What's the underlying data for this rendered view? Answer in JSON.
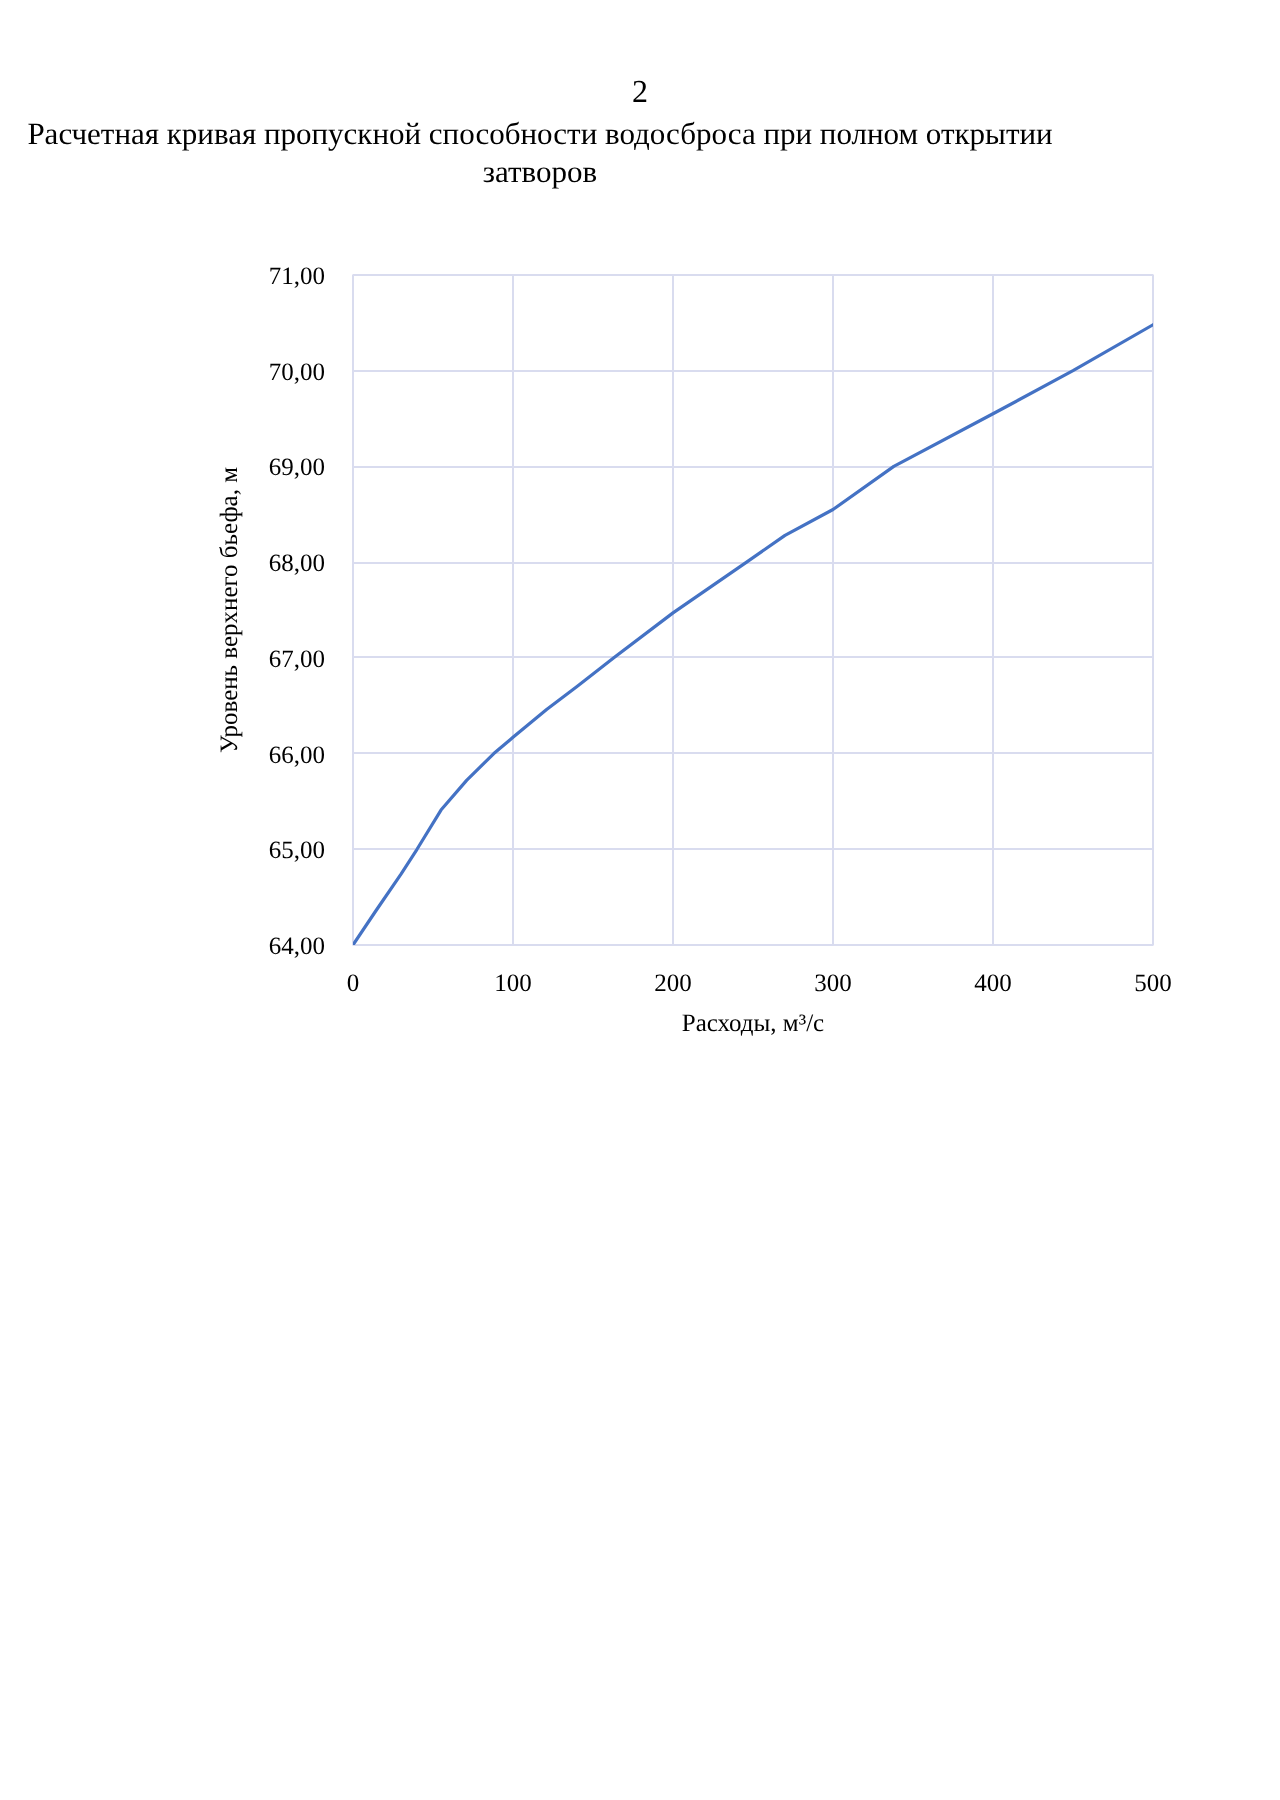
{
  "chart_data": {
    "type": "line",
    "title": "Расчетная кривая пропускной способности водосброса при полном открытии затворов",
    "xlabel": "Расходы, м³/с",
    "ylabel": "Уровень верхнего бьефа, м",
    "annotations": [
      "2"
    ],
    "x": [
      0,
      14,
      30,
      40,
      55,
      71,
      88,
      100,
      121,
      140,
      163,
      200,
      246,
      270,
      300,
      338,
      400,
      450,
      500
    ],
    "series": [
      {
        "color": "#4472c4",
        "values": [
          64.0,
          64.35,
          64.74,
          65.0,
          65.41,
          65.72,
          66.0,
          66.17,
          66.46,
          66.7,
          67.0,
          67.47,
          68.0,
          68.28,
          68.55,
          69.0,
          69.55,
          70.0,
          70.48
        ]
      }
    ],
    "xlim": [
      0,
      500
    ],
    "ylim": [
      64,
      71
    ],
    "xticks": [
      0,
      100,
      200,
      300,
      400,
      500
    ],
    "yticks": [
      {
        "value": 64,
        "label": "64,00"
      },
      {
        "value": 65,
        "label": "65,00"
      },
      {
        "value": 66,
        "label": "66,00"
      },
      {
        "value": 67,
        "label": "67,00"
      },
      {
        "value": 68,
        "label": "68,00"
      },
      {
        "value": 69,
        "label": "69,00"
      },
      {
        "value": 70,
        "label": "70,00"
      },
      {
        "value": 71,
        "label": "71,00"
      }
    ],
    "grid": true
  }
}
